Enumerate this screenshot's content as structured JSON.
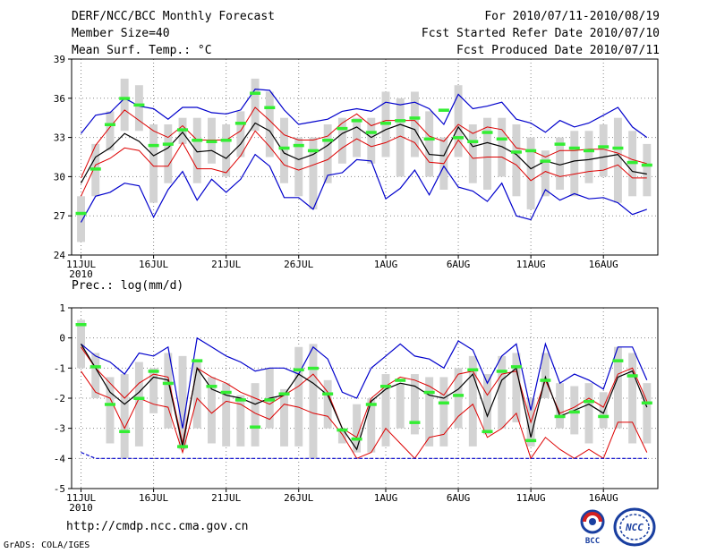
{
  "header": {
    "left": [
      "DERF/NCC/BCC Monthly Forecast",
      "Member Size=40",
      "Mean Surf. Temp.: °C"
    ],
    "right": [
      "For 2010/07/11-2010/08/19",
      "Fcst Started Refer Date 2010/07/10",
      "Fcst Produced Date 2010/07/11"
    ]
  },
  "footer": {
    "url": "http://cmdp.ncc.cma.gov.cn",
    "grads": "GrADS: COLA/IGES"
  },
  "logos": {
    "bcc": "BCC",
    "ncc": "NCC"
  },
  "colors": {
    "box": "#d3d3d3",
    "median": "#000000",
    "spread": "#dd0000",
    "extreme": "#0000cc",
    "obs": "#33ee33"
  },
  "chart_data": [
    {
      "type": "line",
      "title": "Mean Surf. Temp.: °C",
      "ylim": [
        24,
        39
      ],
      "yticks": [
        24,
        27,
        30,
        33,
        36,
        39
      ],
      "xticks": [
        {
          "i": 0,
          "label": "11JUL",
          "sub": "2010"
        },
        {
          "i": 5,
          "label": "16JUL"
        },
        {
          "i": 10,
          "label": "21JUL"
        },
        {
          "i": 15,
          "label": "26JUL"
        },
        {
          "i": 21,
          "label": "1AUG"
        },
        {
          "i": 26,
          "label": "6AUG"
        },
        {
          "i": 31,
          "label": "11AUG"
        },
        {
          "i": 36,
          "label": "16AUG"
        }
      ],
      "days": 40,
      "box_low": [
        25.0,
        28.5,
        32.0,
        33.5,
        33.5,
        28.0,
        29.5,
        32.5,
        29.5,
        31.0,
        30.0,
        31.5,
        33.5,
        31.5,
        29.5,
        28.5,
        27.5,
        29.5,
        31.0,
        31.5,
        31.0,
        31.5,
        30.0,
        31.5,
        30.0,
        29.0,
        31.5,
        29.5,
        29.0,
        30.0,
        28.5,
        27.5,
        28.5,
        29.0,
        28.5,
        29.5,
        30.0,
        28.0,
        28.5,
        28.5
      ],
      "box_high": [
        28.5,
        32.5,
        35.0,
        37.5,
        37.0,
        34.0,
        34.0,
        34.5,
        34.5,
        34.5,
        34.0,
        35.0,
        37.5,
        36.5,
        34.5,
        33.0,
        33.0,
        34.0,
        34.5,
        34.5,
        34.5,
        36.5,
        36.0,
        36.5,
        35.0,
        33.0,
        37.0,
        34.0,
        34.5,
        34.5,
        34.0,
        33.0,
        32.0,
        33.0,
        33.5,
        33.5,
        34.0,
        34.5,
        33.5,
        32.5
      ],
      "series": [
        {
          "name": "max",
          "values": [
            33.3,
            34.7,
            34.9,
            36.0,
            35.4,
            35.2,
            34.4,
            35.3,
            35.3,
            34.9,
            34.8,
            35.1,
            36.7,
            36.6,
            35.1,
            34.0,
            34.2,
            34.4,
            35.0,
            35.2,
            35.0,
            35.7,
            35.5,
            35.7,
            35.2,
            34.0,
            36.3,
            35.2,
            35.4,
            35.7,
            34.4,
            34.1,
            33.4,
            34.3,
            33.8,
            34.1,
            34.7,
            35.3,
            33.8,
            33.0
          ]
        },
        {
          "name": "upper",
          "values": [
            29.9,
            32.4,
            33.8,
            35.1,
            34.3,
            33.5,
            33.0,
            33.9,
            32.8,
            32.8,
            32.8,
            33.5,
            35.3,
            34.3,
            33.2,
            32.8,
            32.8,
            33.1,
            34.1,
            34.8,
            33.9,
            34.3,
            34.3,
            34.3,
            33.1,
            32.7,
            34.0,
            33.3,
            33.8,
            33.6,
            32.2,
            32.0,
            31.5,
            32.0,
            32.0,
            32.1,
            32.1,
            31.8,
            31.3,
            31.0
          ]
        },
        {
          "name": "median",
          "values": [
            29.5,
            31.5,
            32.2,
            33.3,
            32.7,
            31.6,
            32.2,
            33.4,
            31.9,
            32.0,
            31.4,
            32.5,
            34.1,
            33.5,
            31.8,
            31.3,
            31.7,
            32.4,
            33.3,
            33.8,
            33.0,
            33.6,
            34.0,
            33.6,
            31.7,
            31.6,
            33.8,
            32.3,
            32.6,
            32.3,
            31.7,
            30.6,
            31.2,
            30.9,
            31.2,
            31.3,
            31.5,
            31.7,
            30.4,
            30.2
          ]
        },
        {
          "name": "lower",
          "values": [
            28.5,
            30.9,
            31.4,
            32.2,
            32.0,
            30.8,
            30.8,
            32.6,
            30.6,
            30.6,
            30.3,
            31.6,
            33.5,
            32.3,
            30.9,
            30.5,
            30.9,
            31.3,
            32.2,
            32.9,
            32.3,
            32.6,
            33.1,
            32.6,
            31.1,
            31.0,
            32.8,
            31.4,
            31.5,
            31.5,
            30.9,
            29.7,
            30.4,
            30.0,
            30.2,
            30.4,
            30.5,
            30.9,
            29.9,
            29.9
          ]
        },
        {
          "name": "min",
          "values": [
            26.5,
            28.5,
            28.8,
            29.5,
            29.3,
            26.9,
            29.0,
            30.4,
            28.2,
            29.8,
            28.8,
            29.8,
            31.7,
            30.8,
            28.4,
            28.4,
            27.5,
            30.1,
            30.3,
            31.3,
            31.2,
            28.3,
            29.1,
            30.5,
            28.6,
            30.8,
            29.2,
            28.9,
            28.1,
            29.5,
            27.0,
            26.7,
            29.0,
            28.2,
            28.7,
            28.3,
            28.4,
            28.0,
            27.1,
            27.5
          ]
        },
        {
          "name": "obs",
          "values": [
            27.2,
            30.6,
            34.0,
            36.0,
            35.5,
            32.4,
            32.5,
            33.6,
            32.8,
            32.7,
            32.8,
            34.1,
            36.4,
            35.3,
            32.2,
            32.4,
            32.0,
            32.8,
            33.7,
            34.3,
            33.4,
            34.1,
            34.3,
            34.5,
            32.9,
            35.1,
            33.0,
            32.7,
            33.4,
            32.9,
            31.9,
            32.0,
            31.2,
            32.5,
            32.2,
            32.0,
            32.3,
            32.2,
            31.1,
            30.9
          ]
        }
      ]
    },
    {
      "type": "line",
      "title": "Prec.: log(mm/d)",
      "ylim": [
        -5,
        1
      ],
      "yticks": [
        -5,
        -4,
        -3,
        -2,
        -1,
        0,
        1
      ],
      "xticks": [
        {
          "i": 0,
          "label": "11JUL",
          "sub": "2010"
        },
        {
          "i": 5,
          "label": "16JUL"
        },
        {
          "i": 10,
          "label": "21JUL"
        },
        {
          "i": 15,
          "label": "26JUL"
        },
        {
          "i": 21,
          "label": "1AUG"
        },
        {
          "i": 26,
          "label": "6AUG"
        },
        {
          "i": 31,
          "label": "11AUG"
        },
        {
          "i": 36,
          "label": "16AUG"
        }
      ],
      "days": 40,
      "box_low": [
        -1.0,
        -2.0,
        -3.5,
        -4.0,
        -3.6,
        -2.5,
        -3.0,
        -3.7,
        -3.0,
        -3.5,
        -3.6,
        -3.6,
        -3.6,
        -3.0,
        -3.6,
        -3.6,
        -4.0,
        -3.0,
        -3.5,
        -3.8,
        -3.8,
        -3.6,
        -3.0,
        -3.2,
        -3.6,
        -3.6,
        -3.0,
        -3.6,
        -3.2,
        -3.0,
        -2.8,
        -3.6,
        -2.0,
        -3.0,
        -3.2,
        -3.5,
        -3.0,
        -3.0,
        -3.5,
        -3.5
      ],
      "box_high": [
        0.6,
        -0.5,
        -1.3,
        -1.2,
        -0.8,
        -1.0,
        -0.5,
        -0.6,
        -0.8,
        -1.3,
        -1.5,
        -1.9,
        -1.5,
        -1.0,
        -1.7,
        -0.3,
        -0.2,
        -1.4,
        -3.0,
        -2.2,
        -2.0,
        -1.2,
        -1.5,
        -1.2,
        -1.3,
        -1.3,
        -1.0,
        -0.6,
        -1.2,
        -0.6,
        -0.5,
        -2.0,
        -0.5,
        -1.5,
        -1.6,
        -1.5,
        -1.8,
        -0.3,
        -0.5,
        -1.5
      ],
      "series": [
        {
          "name": "max",
          "values": [
            -0.2,
            -0.6,
            -0.8,
            -1.2,
            -0.5,
            -0.6,
            -0.3,
            -3.0,
            0.0,
            -0.3,
            -0.6,
            -0.8,
            -1.1,
            -1.0,
            -1.0,
            -1.2,
            -0.3,
            -0.7,
            -1.8,
            -2.0,
            -1.0,
            -0.6,
            -0.2,
            -0.6,
            -0.7,
            -1.0,
            -0.1,
            -0.4,
            -1.5,
            -0.6,
            -0.2,
            -2.4,
            -0.2,
            -1.5,
            -1.2,
            -1.4,
            -1.7,
            -0.3,
            -0.3,
            -1.4
          ]
        },
        {
          "name": "upper",
          "values": [
            -0.3,
            -1.0,
            -1.5,
            -2.0,
            -1.5,
            -1.2,
            -1.3,
            -3.5,
            -1.0,
            -1.3,
            -1.5,
            -1.8,
            -2.0,
            -2.2,
            -1.9,
            -1.6,
            -1.2,
            -1.8,
            -3.0,
            -3.3,
            -2.0,
            -1.6,
            -1.3,
            -1.4,
            -1.6,
            -1.9,
            -1.2,
            -1.1,
            -1.9,
            -1.2,
            -1.1,
            -2.8,
            -1.4,
            -2.5,
            -2.3,
            -2.0,
            -2.3,
            -1.2,
            -1.0,
            -2.1
          ]
        },
        {
          "name": "median",
          "values": [
            -0.2,
            -1.0,
            -1.8,
            -2.2,
            -1.8,
            -1.3,
            -1.4,
            -3.6,
            -1.0,
            -1.7,
            -1.9,
            -2.0,
            -2.2,
            -2.0,
            -1.9,
            -1.2,
            -1.5,
            -1.9,
            -3.0,
            -3.7,
            -2.1,
            -1.7,
            -1.5,
            -1.6,
            -1.9,
            -2.0,
            -1.7,
            -1.2,
            -2.6,
            -1.4,
            -1.0,
            -3.3,
            -1.3,
            -2.6,
            -2.4,
            -2.2,
            -2.5,
            -1.3,
            -1.1,
            -2.3
          ]
        },
        {
          "name": "lower",
          "values": [
            -1.1,
            -1.8,
            -2.0,
            -3.0,
            -2.0,
            -2.2,
            -2.3,
            -3.8,
            -2.0,
            -2.5,
            -2.1,
            -2.2,
            -2.5,
            -2.7,
            -2.2,
            -2.3,
            -2.5,
            -2.6,
            -3.2,
            -4.0,
            -3.8,
            -3.0,
            -3.5,
            -4.0,
            -3.3,
            -3.2,
            -2.6,
            -2.2,
            -3.3,
            -3.0,
            -2.5,
            -4.0,
            -3.3,
            -3.7,
            -4.0,
            -3.7,
            -4.0,
            -2.8,
            -2.8,
            -3.8
          ]
        },
        {
          "name": "min",
          "values": [
            -3.8,
            -4.0,
            -4.0,
            -4.0,
            -4.0,
            -4.0,
            -4.0,
            -4.0,
            -4.0,
            -4.0,
            -4.0,
            -4.0,
            -4.0,
            -4.0,
            -4.0,
            -4.0,
            -4.0,
            -4.0,
            -4.0,
            -4.0,
            -4.0,
            -4.0,
            -4.0,
            -4.0,
            -4.0,
            -4.0,
            -4.0,
            -4.0,
            -4.0,
            -4.0,
            -4.0,
            -4.0,
            -4.0,
            -4.0,
            -4.0,
            -4.0,
            -4.0,
            -4.0,
            -4.0,
            -4.0
          ]
        },
        {
          "name": "obs",
          "values": [
            0.45,
            -0.95,
            -2.2,
            -3.1,
            -2.0,
            -1.1,
            -1.5,
            -3.6,
            -0.75,
            -1.6,
            -1.8,
            -2.05,
            -2.95,
            -2.05,
            -1.85,
            -1.05,
            -1.0,
            -1.85,
            -3.05,
            -3.35,
            -2.2,
            -1.6,
            -1.4,
            -2.8,
            -1.8,
            -2.15,
            -1.9,
            -1.05,
            -3.1,
            -1.1,
            -0.95,
            -3.4,
            -1.4,
            -2.6,
            -2.45,
            -2.1,
            -2.6,
            -0.75,
            -1.25,
            -2.15
          ]
        }
      ]
    }
  ]
}
